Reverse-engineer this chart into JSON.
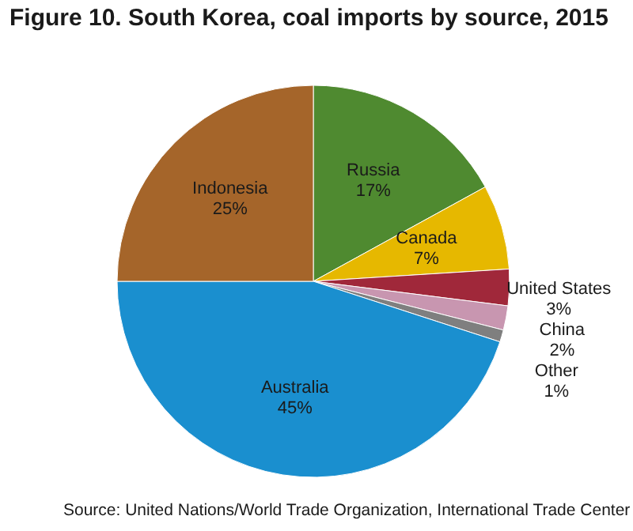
{
  "chart_data": {
    "type": "pie",
    "title": "Figure 10. South Korea, coal imports by source, 2015",
    "categories": [
      "Russia",
      "Canada",
      "United States",
      "China",
      "Other",
      "Australia",
      "Indonesia"
    ],
    "values": [
      17,
      7,
      3,
      2,
      1,
      45,
      25
    ],
    "value_labels": [
      "17%",
      "7%",
      "3%",
      "2%",
      "1%",
      "45%",
      "25%"
    ],
    "colors": [
      "#4f8a30",
      "#e6b800",
      "#a0283a",
      "#c896b0",
      "#7f7f7f",
      "#1a8fcf",
      "#a5652a"
    ],
    "annotations": [
      "Source: United Nations/World Trade Organization, International Trade Center"
    ]
  }
}
